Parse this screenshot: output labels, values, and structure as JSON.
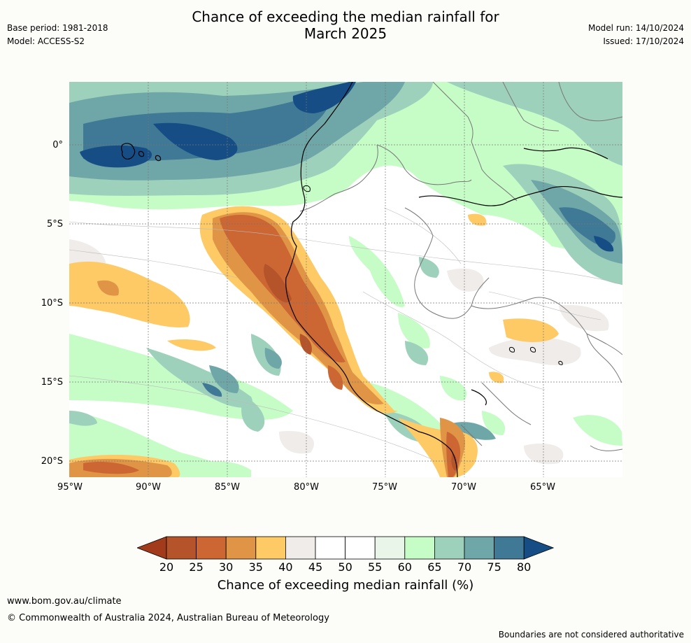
{
  "title_line1": "Chance of exceeding the median rainfall for",
  "title_line2": "March 2025",
  "base_period": "Base period: 1981-2018",
  "model": "Model: ACCESS-S2",
  "model_run": "Model run: 14/10/2024",
  "issued": "Issued: 17/10/2024",
  "latitude_labels": [
    "0°",
    "5°S",
    "10°S",
    "15°S",
    "20°S"
  ],
  "longitude_labels": [
    "95°W",
    "90°W",
    "85°W",
    "80°W",
    "75°W",
    "70°W",
    "65°W"
  ],
  "colorbar": {
    "ticks": [
      "20",
      "25",
      "30",
      "35",
      "40",
      "45",
      "50",
      "55",
      "60",
      "65",
      "70",
      "75",
      "80"
    ],
    "colors": [
      "#a23a1c",
      "#b5532a",
      "#cc6633",
      "#e09446",
      "#fdca66",
      "#efecea",
      "#ffffff",
      "#ffffff",
      "#eaf5ea",
      "#c6fcc6",
      "#9ed1bb",
      "#6fa7a8",
      "#3f7996",
      "#154d84"
    ],
    "label": "Chance of exceeding median rainfall (%)"
  },
  "footer_url": "www.bom.gov.au/climate",
  "footer_copyright": "© Commonwealth of Australia 2024, Australian Bureau of Meteorology",
  "disclaimer": "Boundaries are not considered authoritative"
}
